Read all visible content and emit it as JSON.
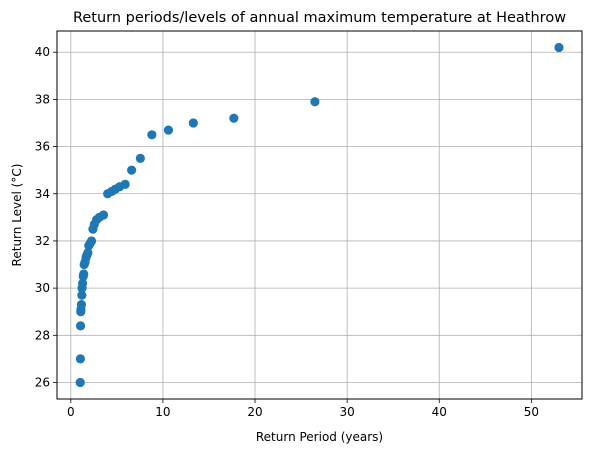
{
  "chart_data": {
    "type": "scatter",
    "title": "Return periods/levels of annual maximum temperature at Heathrow",
    "xlabel": "Return Period (years)",
    "ylabel": "Return Level (°C)",
    "xlim": [
      -1.5,
      55.5
    ],
    "ylim": [
      25.3,
      40.9
    ],
    "xticks": [
      0,
      10,
      20,
      30,
      40,
      50
    ],
    "yticks": [
      26,
      28,
      30,
      32,
      34,
      36,
      38,
      40
    ],
    "grid": true,
    "legend": "none",
    "colors": {
      "marker": "#1f77b4",
      "grid": "#b0b0b0",
      "axis": "#000000"
    },
    "points": [
      {
        "x": 1.02,
        "y": 26.0
      },
      {
        "x": 1.04,
        "y": 27.0
      },
      {
        "x": 1.06,
        "y": 28.4
      },
      {
        "x": 1.08,
        "y": 29.0
      },
      {
        "x": 1.1,
        "y": 29.1
      },
      {
        "x": 1.15,
        "y": 29.3
      },
      {
        "x": 1.2,
        "y": 29.7
      },
      {
        "x": 1.22,
        "y": 30.0
      },
      {
        "x": 1.28,
        "y": 30.2
      },
      {
        "x": 1.35,
        "y": 30.5
      },
      {
        "x": 1.4,
        "y": 30.6
      },
      {
        "x": 1.45,
        "y": 31.0
      },
      {
        "x": 1.55,
        "y": 31.1
      },
      {
        "x": 1.65,
        "y": 31.3
      },
      {
        "x": 1.75,
        "y": 31.4
      },
      {
        "x": 1.85,
        "y": 31.5
      },
      {
        "x": 1.95,
        "y": 31.8
      },
      {
        "x": 2.1,
        "y": 31.9
      },
      {
        "x": 2.25,
        "y": 32.0
      },
      {
        "x": 2.4,
        "y": 32.5
      },
      {
        "x": 2.55,
        "y": 32.7
      },
      {
        "x": 2.8,
        "y": 32.9
      },
      {
        "x": 3.1,
        "y": 33.0
      },
      {
        "x": 3.55,
        "y": 33.1
      },
      {
        "x": 4.0,
        "y": 34.0
      },
      {
        "x": 4.45,
        "y": 34.1
      },
      {
        "x": 4.85,
        "y": 34.2
      },
      {
        "x": 5.3,
        "y": 34.3
      },
      {
        "x": 5.9,
        "y": 34.4
      },
      {
        "x": 6.6,
        "y": 35.0
      },
      {
        "x": 7.55,
        "y": 35.5
      },
      {
        "x": 8.8,
        "y": 36.5
      },
      {
        "x": 10.6,
        "y": 36.7
      },
      {
        "x": 13.3,
        "y": 37.0
      },
      {
        "x": 17.7,
        "y": 37.2
      },
      {
        "x": 26.5,
        "y": 37.9
      },
      {
        "x": 53.0,
        "y": 40.2
      }
    ]
  }
}
